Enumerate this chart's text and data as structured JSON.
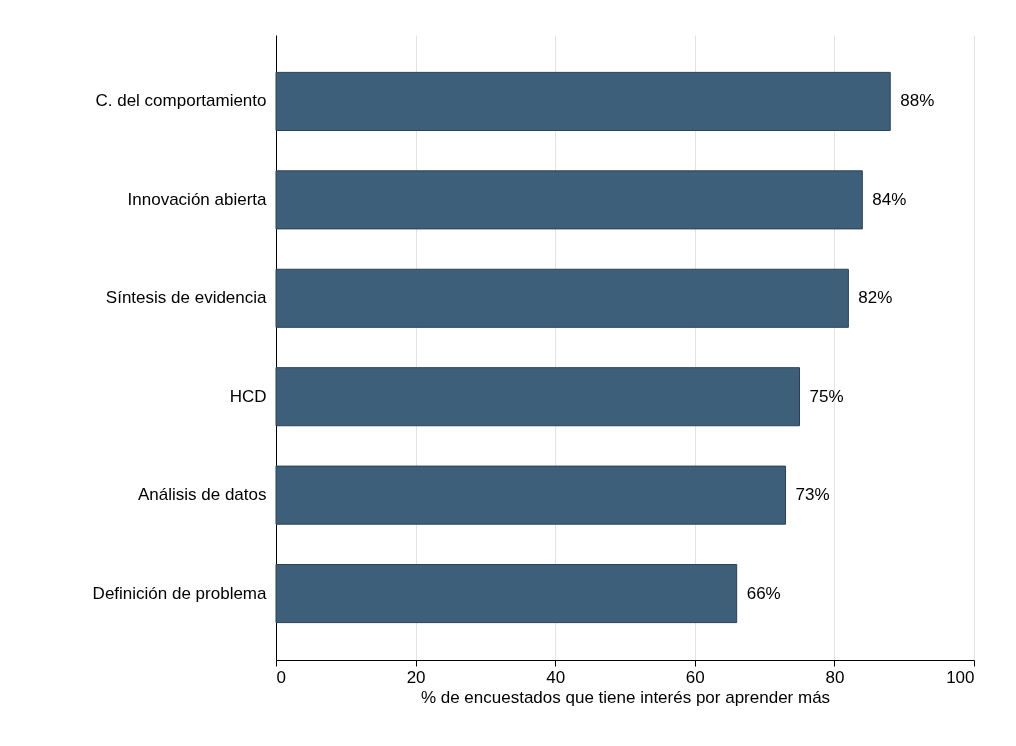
{
  "chart_data": {
    "type": "bar",
    "orientation": "horizontal",
    "xlabel": "% de encuestados que tiene interés por aprender más",
    "categories": [
      "C. del comportamiento",
      "Innovación abierta",
      "Síntesis de evidencia",
      "HCD",
      "Análisis de datos",
      "Definición de problema"
    ],
    "values": [
      88,
      84,
      82,
      75,
      73,
      66
    ],
    "value_labels": [
      "88%",
      "84%",
      "82%",
      "75%",
      "73%",
      "66%"
    ],
    "color": "#3d5f7a",
    "xlim": [
      0,
      100
    ],
    "xticks": [
      0,
      20,
      40,
      60,
      80,
      100
    ],
    "grid": "x"
  }
}
